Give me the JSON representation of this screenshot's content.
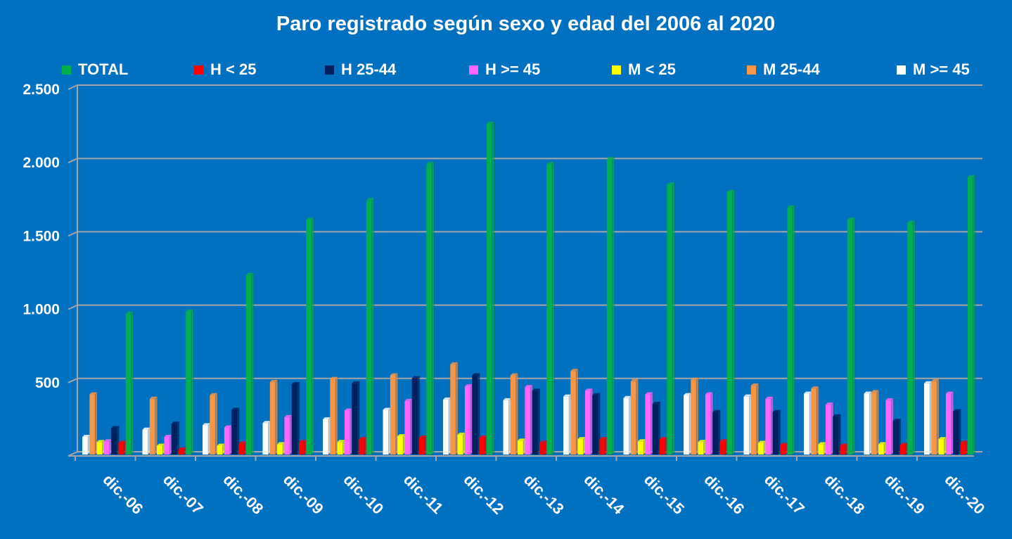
{
  "chart_data": {
    "type": "bar",
    "title": "Paro registrado según sexo y edad del 2006 al 2020",
    "xlabel": "",
    "ylabel": "",
    "ylim": [
      0,
      2500
    ],
    "yticks": [
      "",
      "500",
      "1.000",
      "1.500",
      "2.000",
      "2.500"
    ],
    "grid": true,
    "legend_position": "top",
    "categories": [
      "dic.-06",
      "dic.-07",
      "dic.-08",
      "dic.-09",
      "dic.-10",
      "dic.-11",
      "dic.-12",
      "dic.-13",
      "dic.-14",
      "dic.-15",
      "dic.-16",
      "dic.-17",
      "dic.-18",
      "dic.-19",
      "dic.-20"
    ],
    "series": [
      {
        "name": "TOTAL",
        "color": "#00B050",
        "values": [
          960,
          975,
          1225,
          1600,
          1735,
          1980,
          2255,
          1980,
          2015,
          1840,
          1790,
          1685,
          1600,
          1580,
          1890
        ]
      },
      {
        "name": "H < 25",
        "color": "#FF0000",
        "values": [
          80,
          35,
          75,
          85,
          105,
          115,
          115,
          80,
          105,
          105,
          90,
          65,
          60,
          65,
          80
        ]
      },
      {
        "name": "H 25-44",
        "color": "#002060",
        "values": [
          180,
          210,
          305,
          480,
          485,
          520,
          540,
          435,
          405,
          345,
          290,
          290,
          260,
          230,
          295
        ]
      },
      {
        "name": "H >= 45",
        "color": "#FF66FF",
        "values": [
          90,
          120,
          185,
          255,
          300,
          365,
          465,
          460,
          435,
          410,
          410,
          380,
          340,
          370,
          415
        ]
      },
      {
        "name": "M < 25",
        "color": "#FFFF00",
        "values": [
          85,
          60,
          60,
          70,
          85,
          125,
          135,
          95,
          105,
          90,
          85,
          80,
          70,
          70,
          105
        ]
      },
      {
        "name": "M 25-44",
        "color": "#F79646",
        "values": [
          410,
          380,
          405,
          495,
          515,
          540,
          615,
          540,
          570,
          500,
          510,
          470,
          450,
          425,
          500
        ]
      },
      {
        "name": "M >= 45",
        "color": "#FFFFFF",
        "values": [
          120,
          170,
          200,
          215,
          240,
          305,
          375,
          370,
          395,
          385,
          405,
          395,
          415,
          415,
          485
        ]
      }
    ],
    "bar_order": [
      "M >= 45",
      "M 25-44",
      "M < 25",
      "H >= 45",
      "H 25-44",
      "H < 25",
      "TOTAL"
    ]
  }
}
